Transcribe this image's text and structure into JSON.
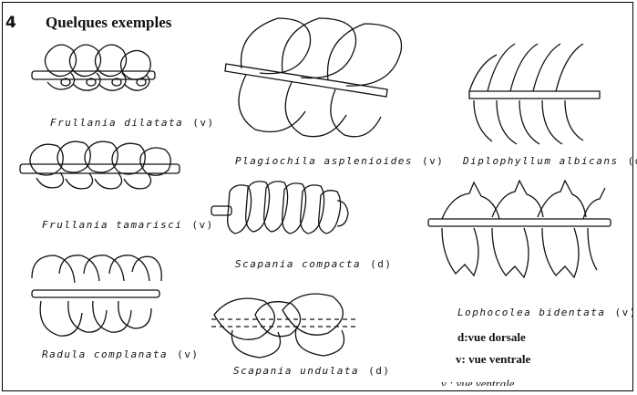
{
  "figure": {
    "number": "4",
    "title": "Quelques exemples"
  },
  "specimens": [
    {
      "name": "Frullania dilatata",
      "view": "(v)"
    },
    {
      "name": "Frullania tamarisci",
      "view": "(v)"
    },
    {
      "name": "Radula complanata",
      "view": "(v)"
    },
    {
      "name": "Plagiochila asplenioides",
      "view": "(v)"
    },
    {
      "name": "Scapania compacta",
      "view": "(d)"
    },
    {
      "name": "Scapania undulata",
      "view": "(d)"
    },
    {
      "name": "Diplophyllum albicans",
      "view": "(d)"
    },
    {
      "name": "Lophocolea bidentata",
      "view": "(v)"
    }
  ],
  "legend": {
    "dorsal": "d:vue dorsale",
    "ventral": "v: vue ventrale",
    "ventral_faded": "v : vue ventrale"
  }
}
